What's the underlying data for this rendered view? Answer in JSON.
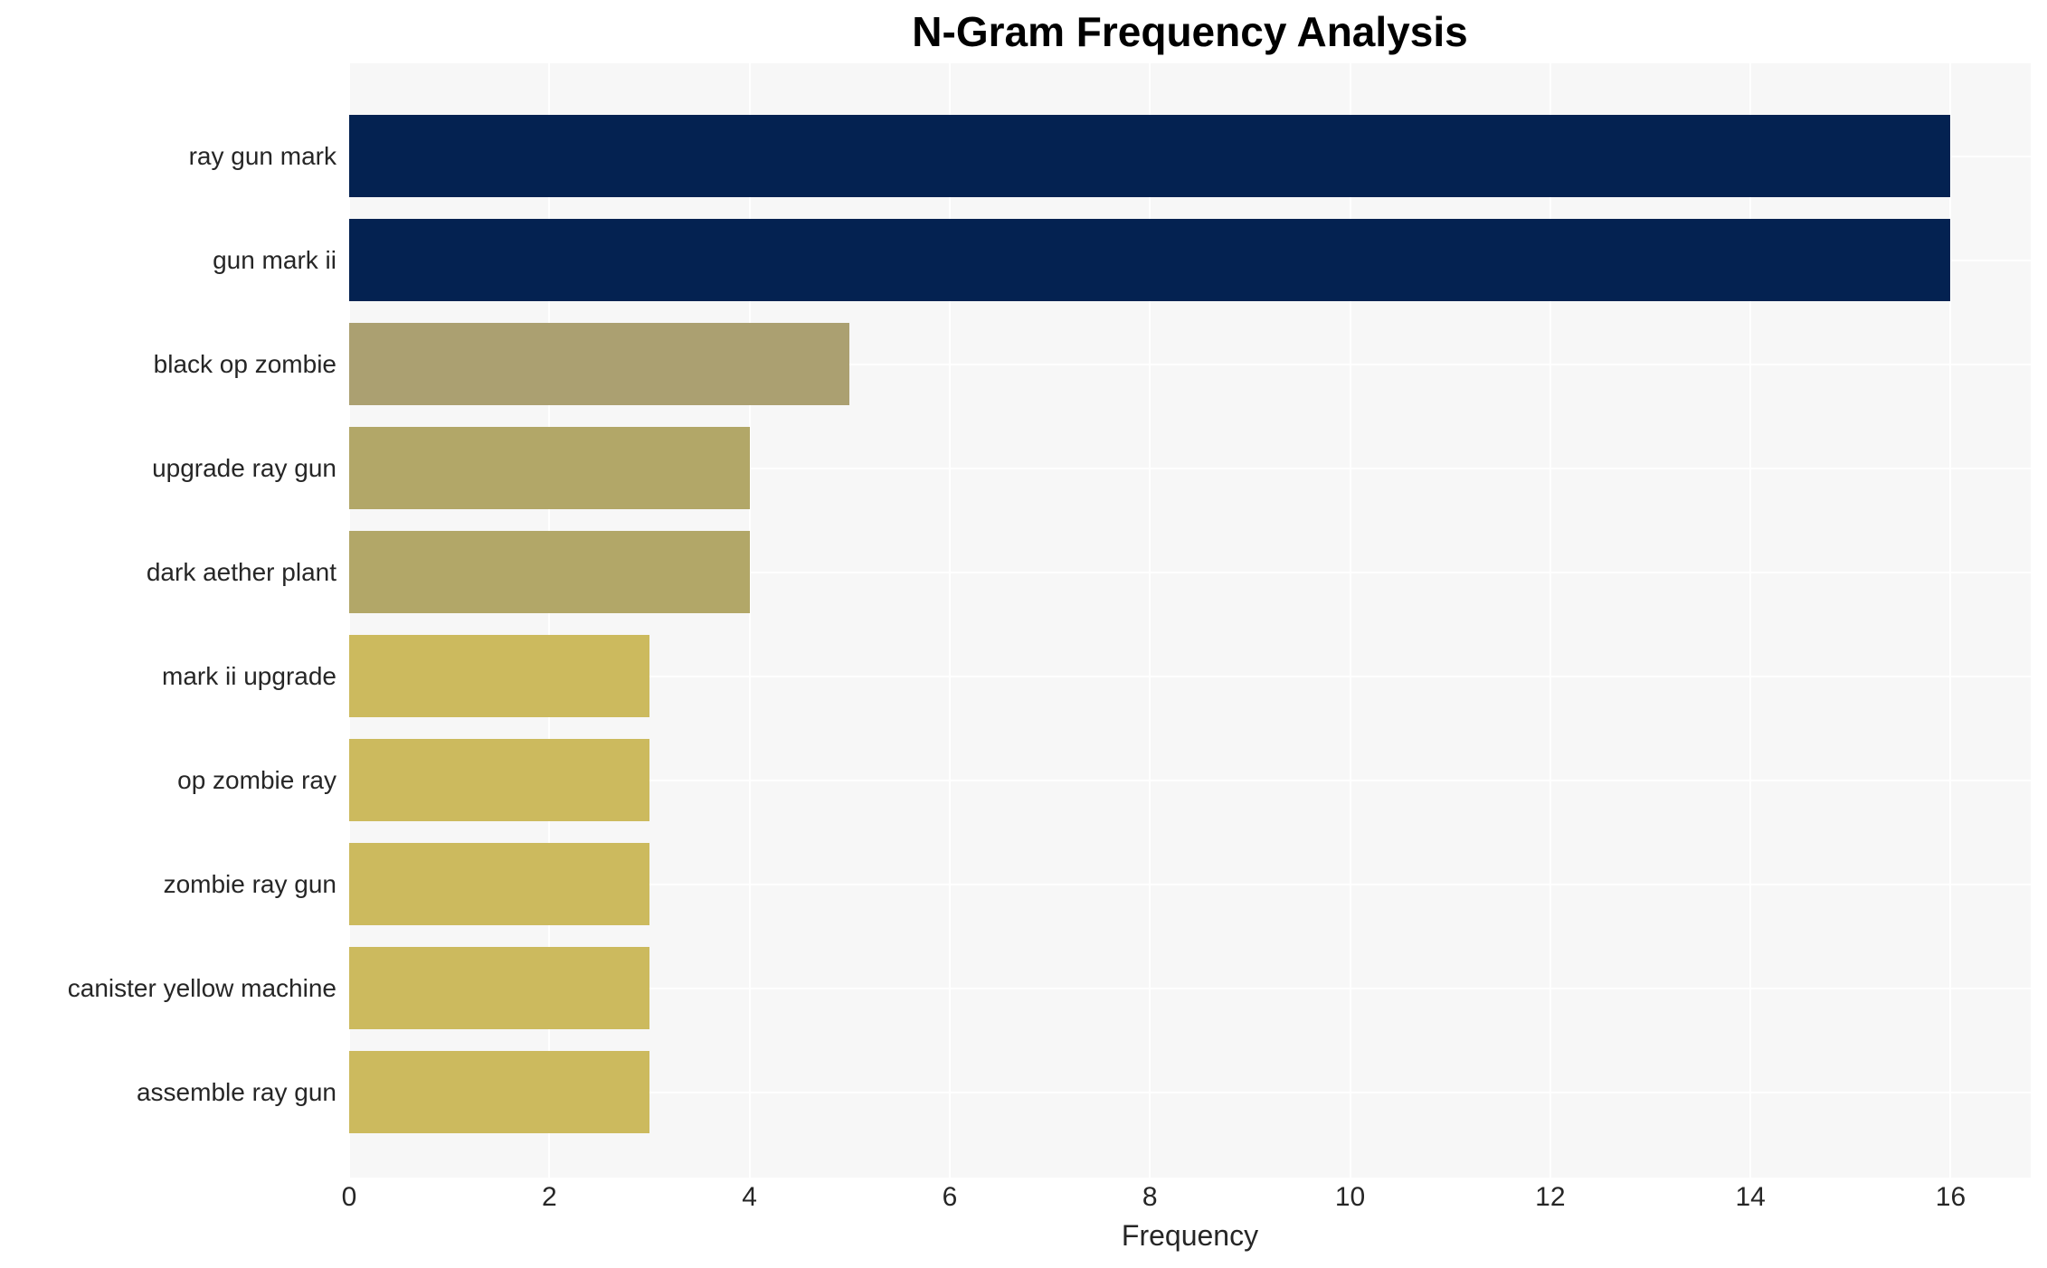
{
  "chart_data": {
    "type": "bar",
    "orientation": "horizontal",
    "title": "N-Gram Frequency Analysis",
    "xlabel": "Frequency",
    "ylabel": "",
    "categories": [
      "ray gun mark",
      "gun mark ii",
      "black op zombie",
      "upgrade ray gun",
      "dark aether plant",
      "mark ii upgrade",
      "op zombie ray",
      "zombie ray gun",
      "canister yellow machine",
      "assemble ray gun"
    ],
    "values": [
      16,
      16,
      5,
      4,
      4,
      3,
      3,
      3,
      3,
      3
    ],
    "bar_colors": [
      "#042251",
      "#042251",
      "#aba071",
      "#b2a768",
      "#b2a768",
      "#ccba5e",
      "#ccba5e",
      "#ccba5e",
      "#ccba5e",
      "#ccba5e"
    ],
    "xticks": [
      0,
      2,
      4,
      6,
      8,
      10,
      12,
      14,
      16
    ],
    "xlim": [
      0,
      16.8
    ],
    "grid": true,
    "legend": false,
    "plot_background": "#f7f7f7",
    "grid_color": "#ffffff",
    "axis_text_color": "#262626",
    "title_color": "#000000"
  }
}
